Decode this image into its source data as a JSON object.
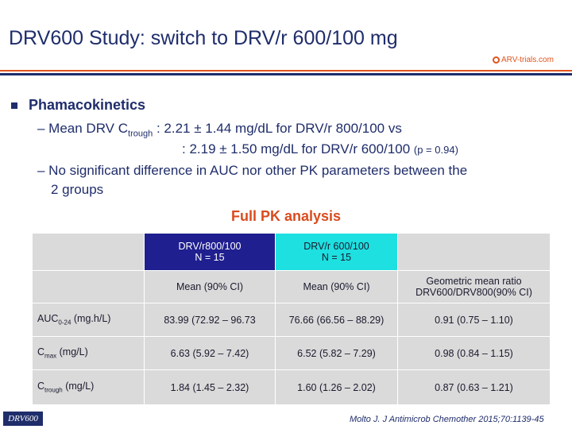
{
  "title": "DRV600 Study: switch to DRV/r 600/100 mg",
  "logo": {
    "text": "ARV-trials.com"
  },
  "colors": {
    "navy": "#1f2d6b",
    "accent": "#d94c1e",
    "header_dark": "#1f1f8f",
    "header_cyan": "#1ee0e0",
    "cell_gray": "#dadada"
  },
  "bullet": {
    "heading": "Phamacokinetics"
  },
  "lines": {
    "l1_pre": "– Mean DRV C",
    "l1_sub": "trough",
    "l1_post": " : 2.21 ± 1.44 mg/dL for DRV/r 800/100 vs",
    "l2_main": ": 2.19 ± 1.50 mg/dL for DRV/r 600/100 ",
    "l2_small": "(p = 0.94)",
    "l3": "– No significant difference in AUC nor other PK parameters between the",
    "l4": "2 groups"
  },
  "section_title": "Full PK analysis",
  "table": {
    "head1": {
      "col2": "DRV/r800/100",
      "col2b": "N = 15",
      "col3": "DRV/r 600/100",
      "col3b": "N = 15"
    },
    "head2": {
      "col2": "Mean (90% CI)",
      "col3": "Mean (90% CI)",
      "col4": "Geometric mean ratio",
      "col4b": "DRV600/DRV800(90% CI)"
    },
    "rows": [
      {
        "label": "AUC",
        "sub": "0-24",
        "unit": " (mg.h/L)",
        "v1": "83.99 (72.92 – 96.73",
        "v2": "76.66 (66.56 – 88.29)",
        "v3": "0.91 (0.75 – 1.10)"
      },
      {
        "label": "C",
        "sub": "max",
        "unit": " (mg/L)",
        "v1": "6.63 (5.92 – 7.42)",
        "v2": "6.52 (5.82 – 7.29)",
        "v3": "0.98 (0.84 – 1.15)"
      },
      {
        "label": "C",
        "sub": "trough",
        "unit": " (mg/L)",
        "v1": "1.84 (1.45 – 2.32)",
        "v2": "1.60 (1.26 – 2.02)",
        "v3": "0.87 (0.63 – 1.21)"
      }
    ]
  },
  "footer": {
    "tag": "DRV600",
    "reference": "Molto J. J Antimicrob Chemother 2015;70:1139-45"
  }
}
